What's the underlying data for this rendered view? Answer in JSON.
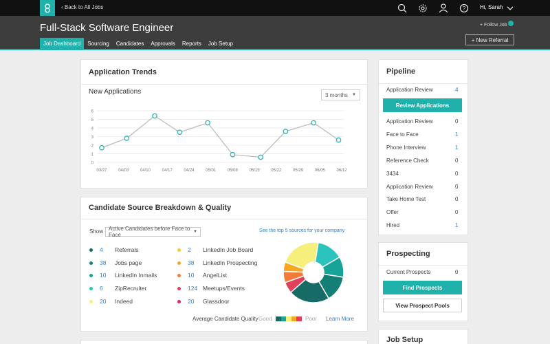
{
  "topbar": {
    "back_link": "Back to All Jobs",
    "greeting": "Hi, Sarah"
  },
  "header": {
    "title": "Full-Stack Software Engineer",
    "follow": "+ Follow Job",
    "new_referral": "+ New Referral",
    "tabs": [
      "Job Dashboard",
      "Sourcing",
      "Candidates",
      "Approvals",
      "Reports",
      "Job Setup"
    ]
  },
  "trends": {
    "title": "Application Trends",
    "range": "3 months"
  },
  "chart_data": [
    {
      "type": "line",
      "title": "New Applications",
      "x": [
        0,
        8,
        17,
        25,
        34,
        42,
        51,
        59,
        68,
        76
      ],
      "values": [
        1.7,
        2.8,
        5.4,
        3.5,
        4.6,
        0.9,
        0.6,
        3.6,
        4.6,
        2.6
      ],
      "xlim": [
        0,
        77
      ],
      "xticks": [
        {
          "value": 0,
          "label": "03/27"
        },
        {
          "value": 7,
          "label": "04/03"
        },
        {
          "value": 14,
          "label": "04/10"
        },
        {
          "value": 21,
          "label": "04/17"
        },
        {
          "value": 28,
          "label": "04/24"
        },
        {
          "value": 35,
          "label": "05/01"
        },
        {
          "value": 42,
          "label": "05/08"
        },
        {
          "value": 49,
          "label": "05/15"
        },
        {
          "value": 56,
          "label": "05/22"
        },
        {
          "value": 63,
          "label": "05/29"
        },
        {
          "value": 70,
          "label": "06/05"
        },
        {
          "value": 77,
          "label": "06/12"
        }
      ],
      "ylim": [
        0,
        6
      ],
      "yticks": [
        0,
        1,
        2,
        3,
        4,
        5,
        6
      ],
      "grid": true,
      "color": "#bdbdbd",
      "marker_color": "#2bb8b3"
    },
    {
      "type": "pie",
      "values": [
        22,
        14,
        11,
        14,
        22,
        6,
        6,
        5
      ],
      "colors": [
        "#f7ef7c",
        "#2cc2bd",
        "#17a396",
        "#137f77",
        "#176b66",
        "#e0405a",
        "#f07b3a",
        "#f5a623"
      ]
    }
  ],
  "sources": {
    "title": "Candidate Source Breakdown & Quality",
    "show_label": "Show",
    "filter": "Active Candidates before Face to Face",
    "top_link": "See the top 5 sources for your company",
    "items": [
      {
        "count": 4,
        "name": "Referrals",
        "color": "#176b66"
      },
      {
        "count": 38,
        "name": "Jobs page",
        "color": "#137f77"
      },
      {
        "count": 10,
        "name": "LinkedIn Inmails",
        "color": "#17a396"
      },
      {
        "count": 6,
        "name": "ZipRecruiter",
        "color": "#2cc2bd"
      },
      {
        "count": 20,
        "name": "Indeed",
        "color": "#f7ef7c"
      },
      {
        "count": 2,
        "name": "LinkedIn Job Board",
        "color": "#f5c842"
      },
      {
        "count": 38,
        "name": "LinkedIn Prospecting",
        "color": "#f5a623"
      },
      {
        "count": 10,
        "name": "AngelList",
        "color": "#f07b3a"
      },
      {
        "count": 124,
        "name": "Meetups/Events",
        "color": "#e0405a"
      },
      {
        "count": 20,
        "name": "Glassdoor",
        "color": "#d92d5f"
      }
    ],
    "quality_label": "Average Candidate Quality",
    "good": "Good",
    "poor": "Poor",
    "quality_colors": [
      "#176b66",
      "#17a396",
      "#f7ef7c",
      "#f5a623",
      "#e0405a"
    ],
    "learn_more": "Learn More"
  },
  "pipeline": {
    "title": "Pipeline",
    "summary": {
      "name": "Application Review",
      "count": 4
    },
    "button": "Review Applications",
    "stages": [
      {
        "name": "Application Review",
        "count": 0
      },
      {
        "name": "Face to Face",
        "count": 1
      },
      {
        "name": "Phone Interview",
        "count": 1
      },
      {
        "name": "Reference Check",
        "count": 0
      },
      {
        "name": "3434",
        "count": 0
      },
      {
        "name": "Application Review",
        "count": 0
      },
      {
        "name": "Take Home Test",
        "count": 0
      },
      {
        "name": "Offer",
        "count": 0
      },
      {
        "name": "Hired",
        "count": 1
      }
    ]
  },
  "prospecting": {
    "title": "Prospecting",
    "row": {
      "name": "Current Prospects",
      "count": 0
    },
    "find": "Find Prospects",
    "pools": "View Prospect Pools"
  },
  "job_setup": {
    "title": "Job Setup"
  }
}
